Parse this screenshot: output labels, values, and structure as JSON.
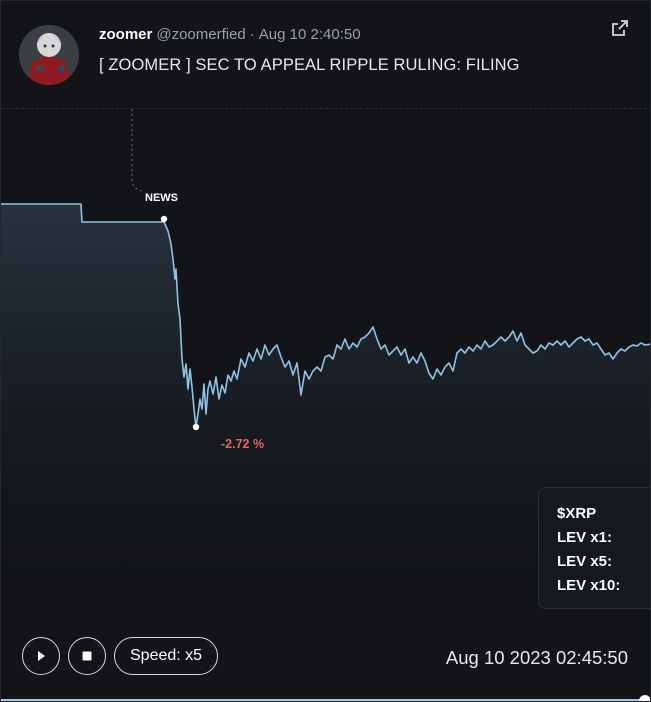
{
  "post": {
    "author": "zoomer",
    "username": "@zoomerfied",
    "separator": "·",
    "timestamp": "Aug 10 2:40:50",
    "headline": "[ ZOOMER ] SEC TO APPEAL RIPPLE RULING: FILING",
    "external_link_icon": "external-link-icon"
  },
  "chart": {
    "news_label": "NEWS",
    "drop_label": "-2.72 %",
    "line_color": "#8fc3e6"
  },
  "infobox": {
    "ticker": "$XRP",
    "lev1": "LEV x1:",
    "lev5": "LEV x5:",
    "lev10": "LEV x10:"
  },
  "controls": {
    "play_icon": "play-icon",
    "stop_icon": "stop-icon",
    "speed_label": "Speed: x5",
    "clock": "Aug 10 2023 02:45:50",
    "progress": 0.99
  }
}
